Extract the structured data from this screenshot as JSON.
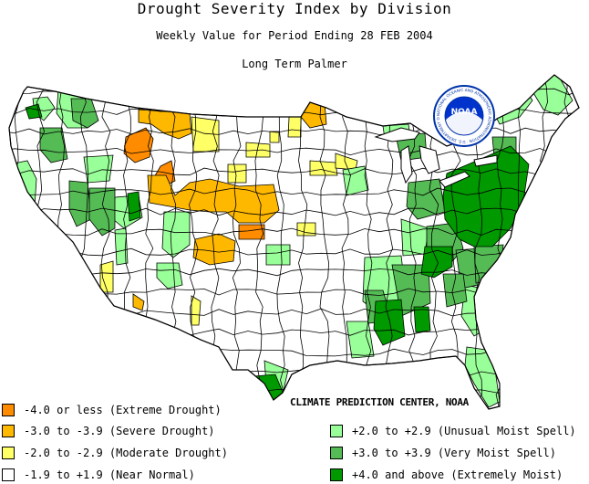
{
  "header": {
    "title": "Drought Severity Index by Division",
    "subtitle": "Weekly Value for Period Ending 28 FEB 2004",
    "index_name": "Long Term Palmer"
  },
  "logo": {
    "text": "NOAA",
    "ring_text": "NATIONAL OCEANIC AND ATMOSPHERIC ADMINISTRATION · U.S. DEPARTMENT OF COMMERCE"
  },
  "credit": "CLIMATE PREDICTION CENTER, NOAA",
  "colors": {
    "extreme_drought": "#ff8c00",
    "severe_drought": "#ffb800",
    "moderate_drought": "#ffff66",
    "near_normal": "#ffffff",
    "unusual_moist": "#99ff99",
    "very_moist": "#55bb55",
    "extremely_moist": "#009900"
  },
  "legend": [
    {
      "label": "-4.0 or less (Extreme Drought)",
      "color": "#ff8c00"
    },
    {
      "label": "-3.0 to -3.9 (Severe Drought)",
      "color": "#ffb800"
    },
    {
      "label": "-2.0 to -2.9 (Moderate Drought)",
      "color": "#ffff66"
    },
    {
      "label": "-1.9 to +1.9 (Near Normal)",
      "color": "#ffffff"
    },
    {
      "label": "+2.0 to +2.9 (Unusual Moist Spell)",
      "color": "#99ff99"
    },
    {
      "label": "+3.0 to +3.9 (Very Moist Spell)",
      "color": "#55bb55"
    },
    {
      "label": "+4.0 and above (Extremely Moist)",
      "color": "#009900"
    }
  ]
}
